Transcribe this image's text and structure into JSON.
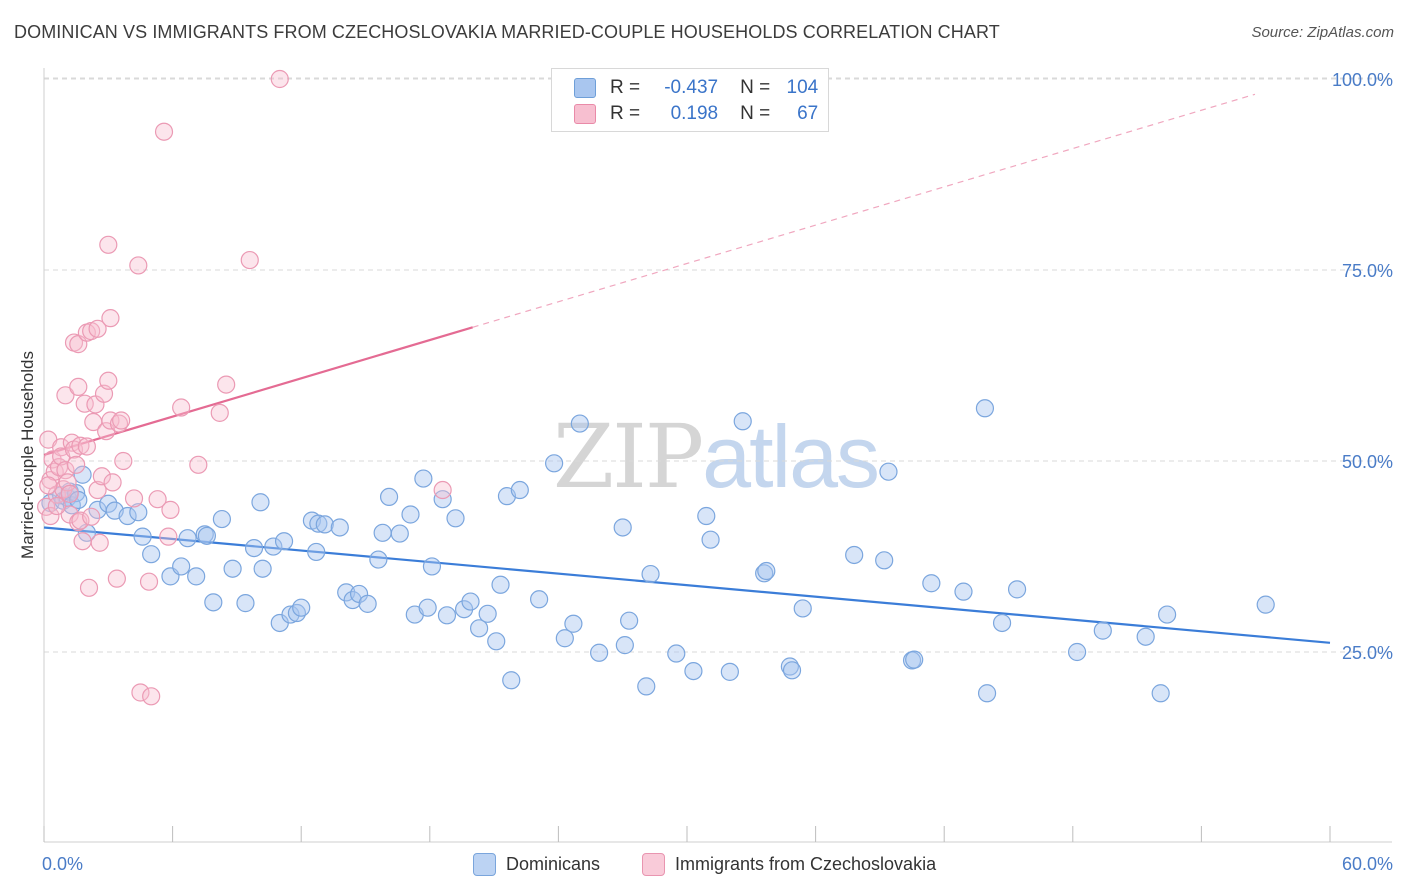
{
  "title": "DOMINICAN VS IMMIGRANTS FROM CZECHOSLOVAKIA MARRIED-COUPLE HOUSEHOLDS CORRELATION CHART",
  "source": "Source: ZipAtlas.com",
  "watermark": {
    "part1": "ZIP",
    "part2": "atlas"
  },
  "legend": {
    "rows": [
      {
        "r_label": "R =",
        "r_value": "-0.437",
        "n_label": "N =",
        "n_value": "104",
        "color": "#a9c6ef",
        "border": "#6f9fd8"
      },
      {
        "r_label": "R =",
        "r_value": "0.198",
        "n_label": "N =",
        "n_value": "67",
        "color": "#f7bfd0",
        "border": "#e98aa8"
      }
    ]
  },
  "bottom_legend": [
    {
      "label": "Dominicans",
      "color": "#bcd3f3",
      "border": "#7aa5dc"
    },
    {
      "label": "Immigrants from Czechoslovakia",
      "color": "#f9cbd9",
      "border": "#e995b0"
    }
  ],
  "colors": {
    "blue": "#3b7dd8",
    "pink": "#e46b93",
    "grid": "#d9d9d9",
    "axis_text": "#4a7cc7"
  },
  "chart_data": {
    "type": "scatter",
    "title": "DOMINICAN VS IMMIGRANTS FROM CZECHOSLOVAKIA MARRIED-COUPLE HOUSEHOLDS CORRELATION CHART",
    "xlabel": "",
    "ylabel": "Married-couple Households",
    "xlim": [
      0,
      60
    ],
    "ylim": [
      0,
      105
    ],
    "x_tick_labels": [
      {
        "x": 0,
        "label": "0.0%"
      },
      {
        "x": 60,
        "label": "60.0%"
      }
    ],
    "y_tick_labels": [
      {
        "y": 25,
        "label": "25.0%"
      },
      {
        "y": 50,
        "label": "50.0%"
      },
      {
        "y": 75,
        "label": "75.0%"
      },
      {
        "y": 100,
        "label": "100.0%"
      }
    ],
    "grid": true,
    "series": [
      {
        "name": "Dominicans",
        "color": "#3b7dd8",
        "trend": {
          "x": [
            0,
            60
          ],
          "y": [
            41.3,
            26.2
          ]
        },
        "points": [
          [
            0.3,
            44.5
          ],
          [
            0.8,
            45.5
          ],
          [
            0.9,
            44.8
          ],
          [
            1.1,
            45.2
          ],
          [
            1.2,
            46.0
          ],
          [
            1.3,
            44.2
          ],
          [
            1.5,
            45.8
          ],
          [
            1.6,
            44.9
          ],
          [
            1.8,
            48.2
          ],
          [
            2.0,
            40.6
          ],
          [
            2.5,
            43.6
          ],
          [
            3.0,
            44.4
          ],
          [
            3.3,
            43.5
          ],
          [
            3.9,
            42.8
          ],
          [
            4.4,
            43.3
          ],
          [
            4.6,
            40.1
          ],
          [
            5.0,
            37.8
          ],
          [
            5.9,
            34.9
          ],
          [
            6.4,
            36.2
          ],
          [
            6.7,
            39.9
          ],
          [
            7.1,
            34.9
          ],
          [
            7.5,
            40.4
          ],
          [
            7.6,
            40.2
          ],
          [
            7.9,
            31.5
          ],
          [
            8.3,
            42.4
          ],
          [
            8.8,
            35.9
          ],
          [
            9.4,
            31.4
          ],
          [
            9.8,
            38.6
          ],
          [
            10.1,
            44.6
          ],
          [
            10.2,
            35.9
          ],
          [
            10.7,
            38.8
          ],
          [
            11.0,
            28.8
          ],
          [
            11.2,
            39.5
          ],
          [
            11.5,
            29.9
          ],
          [
            11.8,
            30.1
          ],
          [
            12.0,
            30.8
          ],
          [
            12.5,
            42.2
          ],
          [
            12.7,
            38.1
          ],
          [
            12.8,
            41.8
          ],
          [
            13.1,
            41.7
          ],
          [
            13.8,
            41.3
          ],
          [
            14.1,
            32.8
          ],
          [
            14.4,
            31.8
          ],
          [
            14.7,
            32.6
          ],
          [
            15.1,
            31.3
          ],
          [
            15.6,
            37.1
          ],
          [
            15.8,
            40.6
          ],
          [
            16.1,
            45.3
          ],
          [
            16.6,
            40.5
          ],
          [
            17.1,
            43.0
          ],
          [
            17.3,
            29.9
          ],
          [
            17.7,
            47.7
          ],
          [
            17.9,
            30.8
          ],
          [
            18.1,
            36.2
          ],
          [
            18.6,
            45.0
          ],
          [
            18.8,
            29.8
          ],
          [
            19.2,
            42.5
          ],
          [
            19.6,
            30.6
          ],
          [
            19.9,
            31.6
          ],
          [
            20.3,
            28.1
          ],
          [
            20.7,
            30.0
          ],
          [
            21.1,
            26.4
          ],
          [
            21.3,
            33.8
          ],
          [
            21.6,
            45.4
          ],
          [
            21.8,
            21.3
          ],
          [
            22.2,
            46.2
          ],
          [
            23.1,
            31.9
          ],
          [
            23.8,
            49.7
          ],
          [
            24.3,
            26.8
          ],
          [
            24.7,
            28.7
          ],
          [
            25.0,
            54.9
          ],
          [
            25.9,
            24.9
          ],
          [
            27.0,
            41.3
          ],
          [
            27.1,
            25.9
          ],
          [
            27.3,
            29.1
          ],
          [
            28.1,
            20.5
          ],
          [
            28.3,
            35.2
          ],
          [
            29.5,
            24.8
          ],
          [
            30.3,
            22.5
          ],
          [
            30.9,
            42.8
          ],
          [
            31.1,
            39.7
          ],
          [
            32.0,
            22.4
          ],
          [
            32.6,
            55.2
          ],
          [
            33.6,
            35.3
          ],
          [
            33.7,
            35.6
          ],
          [
            34.8,
            23.1
          ],
          [
            34.9,
            22.6
          ],
          [
            35.4,
            30.7
          ],
          [
            37.8,
            37.7
          ],
          [
            39.2,
            37.0
          ],
          [
            39.4,
            48.6
          ],
          [
            40.5,
            23.9
          ],
          [
            40.6,
            24.0
          ],
          [
            41.4,
            34.0
          ],
          [
            42.9,
            32.9
          ],
          [
            43.9,
            56.9
          ],
          [
            44.0,
            19.6
          ],
          [
            44.7,
            28.8
          ],
          [
            45.4,
            33.2
          ],
          [
            48.2,
            25.0
          ],
          [
            49.4,
            27.8
          ],
          [
            51.4,
            27.0
          ],
          [
            52.1,
            19.6
          ],
          [
            52.4,
            29.9
          ],
          [
            57.0,
            31.2
          ]
        ]
      },
      {
        "name": "Immigrants from Czechoslovakia",
        "color": "#e46b93",
        "trend": {
          "x": [
            0,
            20
          ],
          "y": [
            50.8,
            67.5
          ],
          "extended_to": [
            56.5,
            98.0
          ]
        },
        "points": [
          [
            0.1,
            44.0
          ],
          [
            0.2,
            52.8
          ],
          [
            0.3,
            47.5
          ],
          [
            0.3,
            42.8
          ],
          [
            0.4,
            50.2
          ],
          [
            0.5,
            48.6
          ],
          [
            0.6,
            45.6
          ],
          [
            0.7,
            49.2
          ],
          [
            0.8,
            51.8
          ],
          [
            0.8,
            50.6
          ],
          [
            0.9,
            46.3
          ],
          [
            1.0,
            58.6
          ],
          [
            1.0,
            48.8
          ],
          [
            1.1,
            47.2
          ],
          [
            1.2,
            43.0
          ],
          [
            1.3,
            52.4
          ],
          [
            1.4,
            51.5
          ],
          [
            1.4,
            65.5
          ],
          [
            1.5,
            49.5
          ],
          [
            1.6,
            59.7
          ],
          [
            1.6,
            42.0
          ],
          [
            1.6,
            65.3
          ],
          [
            1.7,
            52.0
          ],
          [
            1.7,
            42.2
          ],
          [
            1.9,
            57.5
          ],
          [
            1.8,
            39.5
          ],
          [
            2.0,
            51.9
          ],
          [
            2.0,
            66.8
          ],
          [
            2.1,
            33.4
          ],
          [
            2.2,
            67.0
          ],
          [
            2.3,
            55.1
          ],
          [
            2.4,
            57.4
          ],
          [
            2.5,
            46.2
          ],
          [
            2.5,
            67.3
          ],
          [
            2.6,
            39.3
          ],
          [
            2.7,
            48.0
          ],
          [
            2.8,
            58.8
          ],
          [
            2.9,
            53.9
          ],
          [
            3.0,
            60.5
          ],
          [
            3.0,
            78.3
          ],
          [
            3.1,
            55.3
          ],
          [
            3.1,
            68.7
          ],
          [
            3.2,
            47.2
          ],
          [
            3.4,
            34.6
          ],
          [
            3.5,
            54.9
          ],
          [
            3.6,
            55.3
          ],
          [
            3.7,
            50.0
          ],
          [
            4.2,
            45.1
          ],
          [
            4.4,
            75.6
          ],
          [
            4.5,
            19.7
          ],
          [
            4.9,
            34.2
          ],
          [
            5.0,
            19.2
          ],
          [
            5.3,
            45.0
          ],
          [
            5.6,
            93.1
          ],
          [
            5.8,
            40.1
          ],
          [
            5.9,
            43.6
          ],
          [
            6.4,
            57.0
          ],
          [
            7.2,
            49.5
          ],
          [
            8.2,
            56.3
          ],
          [
            8.5,
            60.0
          ],
          [
            9.6,
            76.3
          ],
          [
            11.0,
            100.0
          ],
          [
            18.6,
            46.2
          ],
          [
            0.2,
            46.8
          ],
          [
            1.2,
            45.7
          ],
          [
            0.6,
            44.1
          ],
          [
            2.2,
            42.7
          ]
        ]
      }
    ]
  }
}
